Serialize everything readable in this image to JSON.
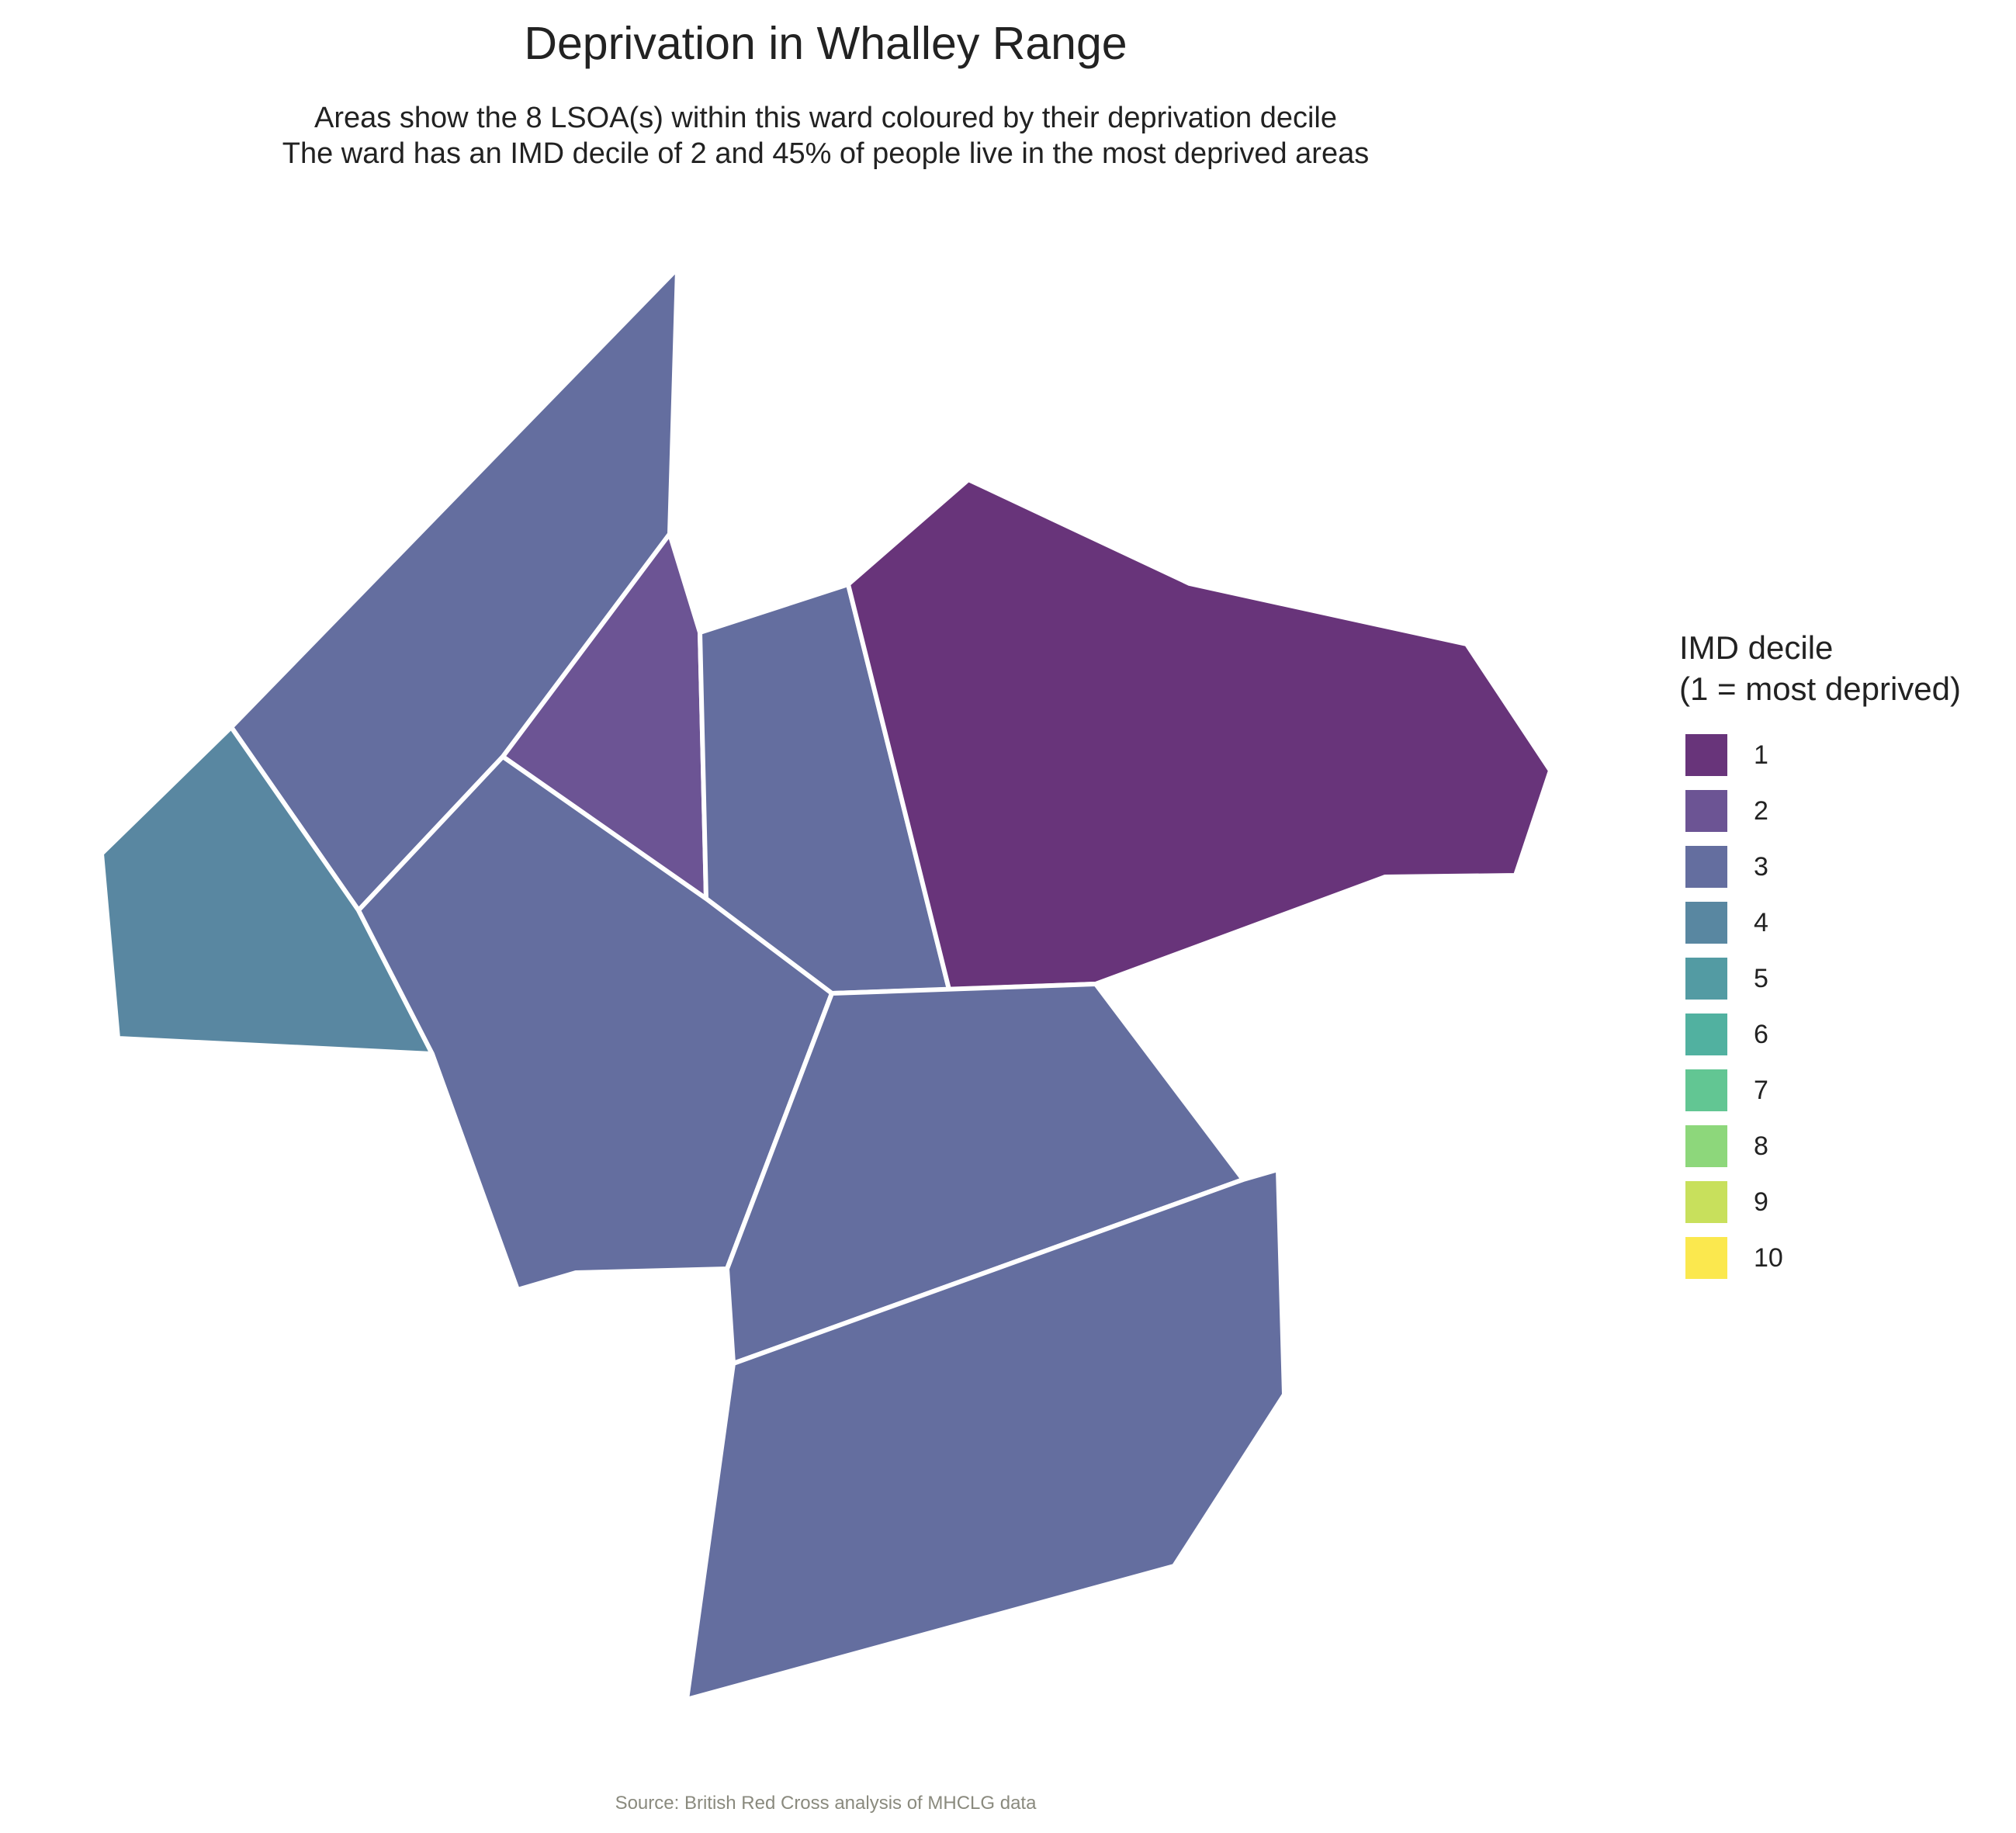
{
  "title": "Deprivation in Whalley Range",
  "subtitle_line1": "Areas show the 8 LSOA(s) within this ward coloured by their deprivation decile",
  "subtitle_line2": "The ward has an IMD decile of 2 and 45% of people live in the most deprived areas",
  "legend": {
    "title_line1": "IMD decile",
    "title_line2": "(1 = most deprived)",
    "items": [
      {
        "label": "1",
        "color": "#68347a"
      },
      {
        "label": "2",
        "color": "#6c5494"
      },
      {
        "label": "3",
        "color": "#646e9f"
      },
      {
        "label": "4",
        "color": "#5987a1"
      },
      {
        "label": "5",
        "color": "#539ba3"
      },
      {
        "label": "6",
        "color": "#51b1a0"
      },
      {
        "label": "7",
        "color": "#62c693"
      },
      {
        "label": "8",
        "color": "#8dd77b"
      },
      {
        "label": "9",
        "color": "#c8e05c"
      },
      {
        "label": "10",
        "color": "#fbe84e"
      }
    ]
  },
  "areas": [
    {
      "name": "lsoa-northwest",
      "decile": 3
    },
    {
      "name": "lsoa-west",
      "decile": 4
    },
    {
      "name": "lsoa-north-central",
      "decile": 2
    },
    {
      "name": "lsoa-central",
      "decile": 3
    },
    {
      "name": "lsoa-central-west",
      "decile": 3
    },
    {
      "name": "lsoa-northeast",
      "decile": 1
    },
    {
      "name": "lsoa-southeast",
      "decile": 3
    },
    {
      "name": "lsoa-south",
      "decile": 3
    }
  ],
  "source": "Source: British Red Cross analysis of MHCLG data"
}
